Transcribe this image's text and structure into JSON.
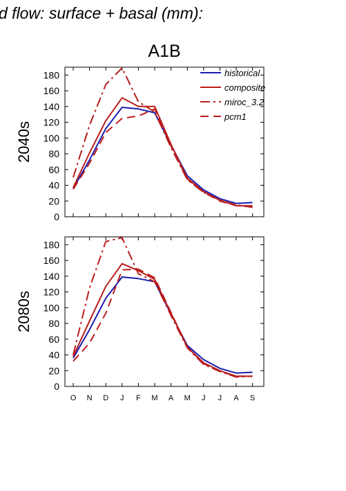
{
  "figure": {
    "header": "d flow: surface + basal (mm):",
    "scenario": "A1B"
  },
  "colors": {
    "blue": "#1a1aad",
    "red": "#b91c1c",
    "axis": "#000000"
  },
  "legend": {
    "position": "top-right",
    "entries": [
      {
        "label": "historical",
        "color": "#1a1aad",
        "dash": "solid"
      },
      {
        "label": "composite",
        "color": "#b91c1c",
        "dash": "solid"
      },
      {
        "label": "miroc_3.2",
        "color": "#b91c1c",
        "dash": "dashdot"
      },
      {
        "label": "pcm1",
        "color": "#b91c1c",
        "dash": "dashed"
      }
    ]
  },
  "chart_data": [
    {
      "type": "line",
      "period": "2040s",
      "categories": [
        "O",
        "N",
        "D",
        "J",
        "F",
        "M",
        "A",
        "M",
        "J",
        "J",
        "A",
        "S"
      ],
      "ylim": [
        0,
        190
      ],
      "yticks": [
        0,
        20,
        40,
        60,
        80,
        100,
        120,
        140,
        160,
        180
      ],
      "show_x_ticklabels": false,
      "series": [
        {
          "name": "historical",
          "values": [
            36,
            72,
            112,
            139,
            137,
            132,
            91,
            52,
            34,
            23,
            17,
            18
          ]
        },
        {
          "name": "composite",
          "values": [
            37,
            81,
            122,
            151,
            140,
            140,
            92,
            49,
            32,
            21,
            14,
            14
          ]
        },
        {
          "name": "miroc_3.2",
          "values": [
            50,
            116,
            168,
            189,
            146,
            133,
            88,
            47,
            31,
            21,
            15,
            12
          ]
        },
        {
          "name": "pcm1",
          "values": [
            35,
            68,
            107,
            125,
            128,
            137,
            90,
            48,
            31,
            20,
            14,
            13
          ]
        }
      ]
    },
    {
      "type": "line",
      "period": "2080s",
      "categories": [
        "O",
        "N",
        "D",
        "J",
        "F",
        "M",
        "A",
        "M",
        "J",
        "J",
        "A",
        "S"
      ],
      "ylim": [
        0,
        190
      ],
      "yticks": [
        0,
        20,
        40,
        60,
        80,
        100,
        120,
        140,
        160,
        180
      ],
      "show_x_ticklabels": true,
      "series": [
        {
          "name": "historical",
          "values": [
            36,
            72,
            112,
            139,
            137,
            133,
            92,
            52,
            34,
            23,
            17,
            18
          ]
        },
        {
          "name": "composite",
          "values": [
            38,
            83,
            127,
            156,
            147,
            136,
            93,
            50,
            30,
            20,
            13,
            13
          ]
        },
        {
          "name": "miroc_3.2",
          "values": [
            40,
            125,
            184,
            189,
            143,
            133,
            90,
            49,
            28,
            19,
            12,
            13
          ]
        },
        {
          "name": "pcm1",
          "values": [
            32,
            55,
            93,
            148,
            149,
            138,
            94,
            50,
            29,
            19,
            13,
            13
          ]
        }
      ]
    }
  ]
}
